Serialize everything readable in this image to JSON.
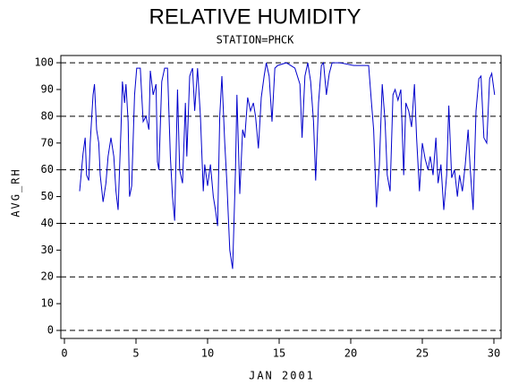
{
  "chart_data": {
    "type": "line",
    "title": "RELATIVE HUMIDITY",
    "subtitle": "STATION=PHCK",
    "x_label": "JAN 2001",
    "y_label": "AVG_RH",
    "xlim": [
      -0.25,
      30.5
    ],
    "ylim": [
      -3,
      102.7
    ],
    "xticks": [
      0,
      5,
      10,
      15,
      20,
      25,
      30
    ],
    "yticks": [
      0,
      10,
      20,
      30,
      40,
      50,
      60,
      70,
      80,
      90,
      100
    ],
    "grid": true,
    "x": [
      1.06,
      1.3,
      1.45,
      1.55,
      1.7,
      1.8,
      2.0,
      2.1,
      2.25,
      2.4,
      2.5,
      2.7,
      2.9,
      3.05,
      3.25,
      3.45,
      3.6,
      3.75,
      3.95,
      4.05,
      4.2,
      4.3,
      4.45,
      4.55,
      4.7,
      4.9,
      5.05,
      5.3,
      5.5,
      5.7,
      5.9,
      6.0,
      6.2,
      6.4,
      6.5,
      6.6,
      6.8,
      7.0,
      7.2,
      7.4,
      7.55,
      7.7,
      7.9,
      8.05,
      8.25,
      8.45,
      8.55,
      8.75,
      8.95,
      9.1,
      9.3,
      9.5,
      9.7,
      9.8,
      10.0,
      10.2,
      10.4,
      10.55,
      10.7,
      10.85,
      11.0,
      11.2,
      11.35,
      11.55,
      11.75,
      11.95,
      12.05,
      12.25,
      12.45,
      12.6,
      12.8,
      13.0,
      13.2,
      13.35,
      13.55,
      13.75,
      13.95,
      14.1,
      14.3,
      14.5,
      14.7,
      14.9,
      15.5,
      16.1,
      16.45,
      16.6,
      16.8,
      17.0,
      17.2,
      17.4,
      17.55,
      17.75,
      17.95,
      18.1,
      18.3,
      18.5,
      18.7,
      19.25,
      20.2,
      21.25,
      21.45,
      21.6,
      21.8,
      22.0,
      22.2,
      22.4,
      22.55,
      22.75,
      22.95,
      23.1,
      23.3,
      23.5,
      23.7,
      23.85,
      24.05,
      24.25,
      24.45,
      24.6,
      24.8,
      25.0,
      25.2,
      25.4,
      25.55,
      25.75,
      25.95,
      26.1,
      26.3,
      26.5,
      26.7,
      26.85,
      27.05,
      27.25,
      27.45,
      27.6,
      27.8,
      28.0,
      28.2,
      28.35,
      28.55,
      28.75,
      28.95,
      29.1,
      29.3,
      29.5,
      29.7,
      29.85,
      30.05
    ],
    "series": [
      {
        "name": "AVG_RH",
        "color": "#0000cc",
        "values": [
          52,
          66,
          72,
          58,
          56,
          70,
          88,
          92,
          75,
          70,
          58,
          48,
          55,
          65,
          72,
          65,
          52,
          45,
          75,
          93,
          85,
          92,
          78,
          50,
          54,
          88,
          98,
          98,
          78,
          80,
          75,
          97,
          88,
          92,
          63,
          60,
          93,
          98,
          98,
          65,
          50,
          41,
          90,
          60,
          55,
          85,
          65,
          95,
          98,
          82,
          98,
          80,
          52,
          62,
          54,
          62,
          50,
          45,
          39,
          80,
          95,
          70,
          55,
          30,
          23,
          60,
          88,
          51,
          75,
          72,
          87,
          82,
          85,
          80,
          68,
          87,
          95,
          100,
          95,
          78,
          98,
          99,
          100,
          98,
          92,
          72,
          95,
          100,
          93,
          78,
          56,
          85,
          99,
          100,
          88,
          96,
          100,
          100,
          99,
          99,
          85,
          75,
          46,
          62,
          92,
          78,
          58,
          52,
          88,
          90,
          86,
          90,
          58,
          85,
          82,
          76,
          92,
          72,
          52,
          70,
          64,
          60,
          65,
          58,
          72,
          55,
          62,
          45,
          58,
          84,
          57,
          60,
          50,
          58,
          52,
          62,
          75,
          60,
          45,
          82,
          94,
          95,
          72,
          70,
          94,
          96,
          88
        ]
      }
    ]
  }
}
